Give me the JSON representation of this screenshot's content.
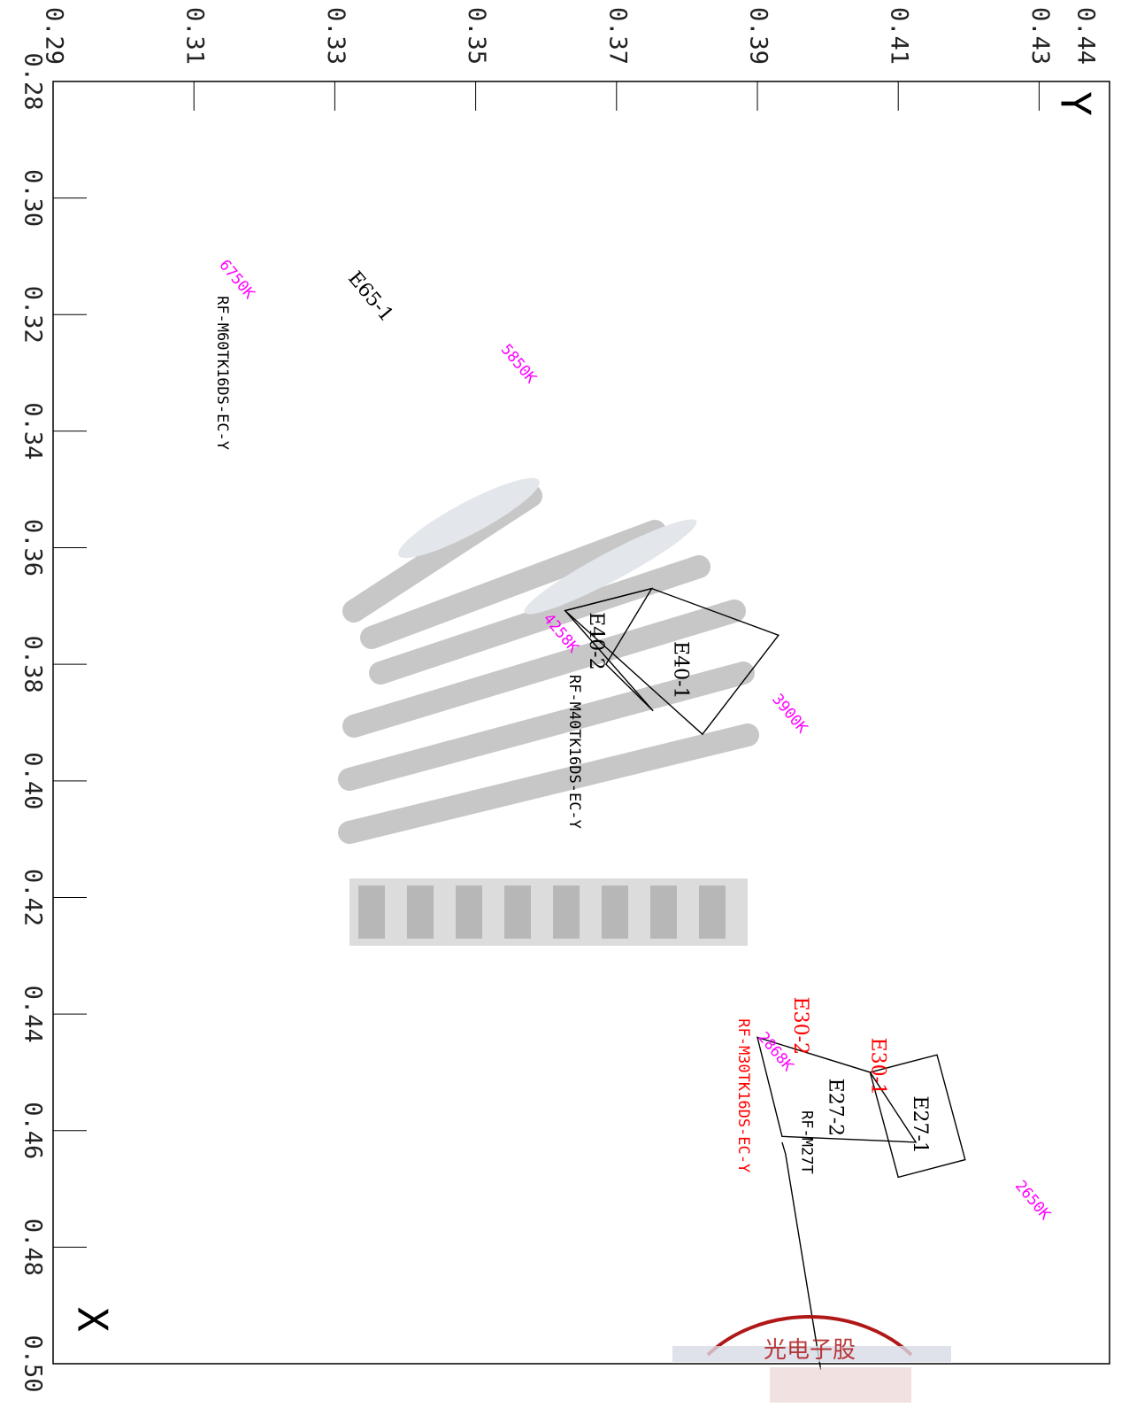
{
  "colors": {
    "frame": "#000000",
    "black_text": "#000000",
    "magenta": "#ff00ff",
    "red": "#ff0000",
    "watermark_gray": "#9a9a9a",
    "seal_red": "#b01818"
  },
  "chart_data": {
    "type": "scatter",
    "title": "",
    "xlabel": "X",
    "ylabel": "Y",
    "xlim": [
      0.28,
      0.5
    ],
    "ylim": [
      0.29,
      0.44
    ],
    "x_ticks": [
      "0.28",
      "0.30",
      "0.32",
      "0.34",
      "0.36",
      "0.38",
      "0.40",
      "0.42",
      "0.44",
      "0.46",
      "0.48",
      "0.50"
    ],
    "y_ticks": [
      "0.29",
      "0.31",
      "0.33",
      "0.35",
      "0.37",
      "0.39",
      "0.41",
      "0.43",
      "0.44"
    ],
    "grid": false,
    "cct_labels": [
      {
        "text": "6750K",
        "x": 0.311,
        "y": 0.314
      },
      {
        "text": "5850K",
        "x": 0.3255,
        "y": 0.354
      },
      {
        "text": "4258K",
        "x": 0.3717,
        "y": 0.36
      },
      {
        "text": "3900K",
        "x": 0.3855,
        "y": 0.3925
      },
      {
        "text": "2868K",
        "x": 0.4435,
        "y": 0.3905
      },
      {
        "text": "2650K",
        "x": 0.469,
        "y": 0.427
      }
    ],
    "bin_labels": [
      {
        "text": "E65-1",
        "x": 0.317,
        "y": 0.335,
        "color": "black"
      },
      {
        "text": "E40-1",
        "x": 0.381,
        "y": 0.379,
        "color": "black"
      },
      {
        "text": "E40-2",
        "x": 0.376,
        "y": 0.367,
        "color": "black"
      },
      {
        "text": "E27-1",
        "x": 0.459,
        "y": 0.413,
        "color": "black"
      },
      {
        "text": "E27-2",
        "x": 0.456,
        "y": 0.401,
        "color": "black"
      },
      {
        "text": "E30-1",
        "x": 0.449,
        "y": 0.407,
        "color": "red"
      },
      {
        "text": "E30-2",
        "x": 0.442,
        "y": 0.396,
        "color": "red"
      }
    ],
    "model_labels": [
      {
        "text": "RF-M60TK16DS-EC-Y",
        "x": 0.33,
        "y": 0.314,
        "color": "black"
      },
      {
        "text": "RF-M40TK16DS-EC-Y",
        "x": 0.395,
        "y": 0.364,
        "color": "black"
      },
      {
        "text": "RF-M30TK16DS-EC-Y",
        "x": 0.454,
        "y": 0.388,
        "color": "red"
      },
      {
        "text": "RF-M27T",
        "x": 0.462,
        "y": 0.397,
        "color": "black"
      }
    ],
    "series": [
      {
        "name": "E40-1",
        "points": [
          [
            0.3708,
            0.3627
          ],
          [
            0.367,
            0.375
          ],
          [
            0.375,
            0.393
          ],
          [
            0.392,
            0.3822
          ]
        ]
      },
      {
        "name": "E40-2",
        "points": [
          [
            0.3708,
            0.3627
          ],
          [
            0.367,
            0.375
          ],
          [
            0.38,
            0.3685
          ],
          [
            0.388,
            0.3752
          ]
        ]
      },
      {
        "name": "E27-1",
        "points": [
          [
            0.45,
            0.406
          ],
          [
            0.447,
            0.4155
          ],
          [
            0.465,
            0.4195
          ],
          [
            0.468,
            0.41
          ]
        ]
      },
      {
        "name": "E27-2",
        "points": [
          [
            0.444,
            0.39
          ],
          [
            0.45,
            0.406
          ],
          [
            0.462,
            0.4125
          ],
          [
            0.461,
            0.3935
          ]
        ]
      },
      {
        "name": "RF-M27T",
        "points": [
          [
            0.462,
            0.3935
          ],
          [
            0.464,
            0.394
          ],
          [
            0.501,
            0.399
          ]
        ]
      }
    ],
    "axis_letters": {
      "x": "X",
      "y": "Y"
    }
  },
  "overlays": {
    "watermark_text": "",
    "seal_text": "光电子股"
  }
}
